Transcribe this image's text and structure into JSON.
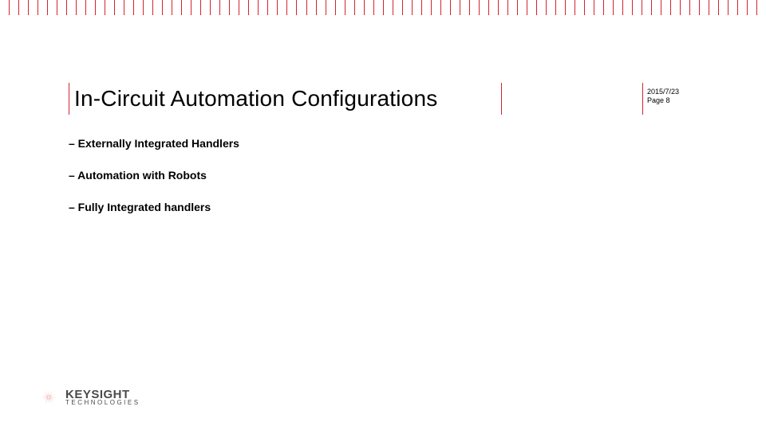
{
  "colors": {
    "accent": "#d7232e",
    "text": "#000000",
    "logo_gray": "#4a4a4a",
    "background": "#ffffff"
  },
  "ruler": {
    "segments": 80,
    "tall_every": 1
  },
  "title": "In-Circuit Automation Configurations",
  "meta": {
    "date": "2015/7/23",
    "page": "Page 8"
  },
  "bullets": [
    "Externally Integrated Handlers",
    "Automation with Robots",
    "Fully Integrated handlers"
  ],
  "bullet_prefix": "–  ",
  "logo": {
    "brand": "KEYSIGHT",
    "sub": "TECHNOLOGIES"
  }
}
